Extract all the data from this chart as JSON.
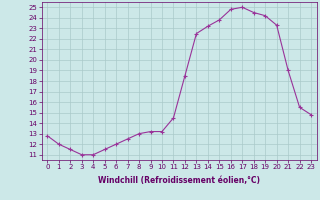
{
  "hours": [
    0,
    1,
    2,
    3,
    4,
    5,
    6,
    7,
    8,
    9,
    10,
    11,
    12,
    13,
    14,
    15,
    16,
    17,
    18,
    19,
    20,
    21,
    22,
    23
  ],
  "temps": [
    12.8,
    12.0,
    11.5,
    11.0,
    11.0,
    11.5,
    12.0,
    12.5,
    13.0,
    13.2,
    13.2,
    14.5,
    18.5,
    22.5,
    23.2,
    23.8,
    24.8,
    25.0,
    24.5,
    24.2,
    23.3,
    19.0,
    15.5,
    14.8
  ],
  "line_color": "#993399",
  "marker": "+",
  "marker_size": 3,
  "marker_linewidth": 0.8,
  "bg_color": "#cce8e8",
  "grid_color": "#aacaca",
  "xlabel": "Windchill (Refroidissement éolien,°C)",
  "xlabel_color": "#660066",
  "ylabel_ticks": [
    11,
    12,
    13,
    14,
    15,
    16,
    17,
    18,
    19,
    20,
    21,
    22,
    23,
    24,
    25
  ],
  "ylim": [
    10.5,
    25.5
  ],
  "xlim": [
    -0.5,
    23.5
  ],
  "tick_color": "#660066",
  "tick_fontsize": 5,
  "xlabel_fontsize": 5.5,
  "linewidth": 0.8
}
